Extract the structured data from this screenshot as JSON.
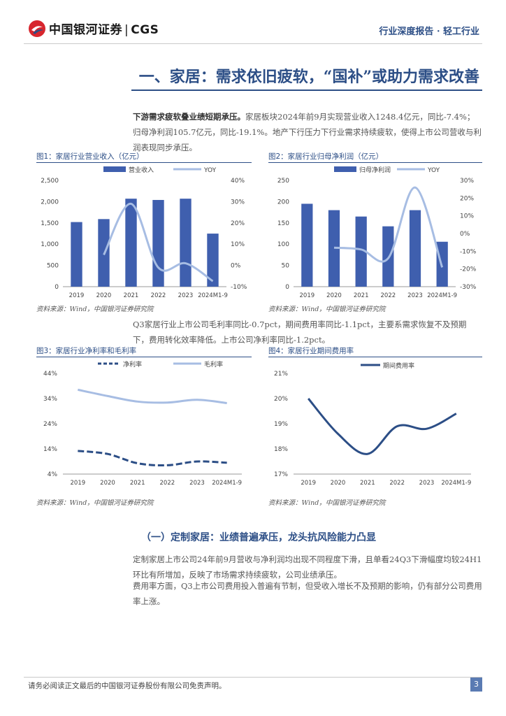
{
  "header": {
    "logo_text": "中国银河证券",
    "logo_sep": "|",
    "logo_abbr": "CGS",
    "report_type": "行业深度报告 · 轻工行业"
  },
  "section_title": "一、家居：需求依旧疲软，“国补”或助力需求改善",
  "para1": {
    "bold": "下游需求疲软叠业绩短期承压。",
    "text": "家居板块2024年前9月实现营业收入1248.4亿元，同比-7.4%；归母净利润105.7亿元，同比-19.1%。地产下行压力下行业需求持续疲软，使得上市公司营收与利润表现同步承压。"
  },
  "para2": "Q3家居行业上市公司毛利率同比-0.7pct，期间费用率同比-1.1pct，主要系需求恢复不及预期下，费用转化效率降低。上市公司净利率同比-1.2pct。",
  "subsection_title": "（一）定制家居：业绩普遍承压，龙头抗风险能力凸显",
  "para3": "定制家居上市公司24年前9月营收与净利润均出现不同程度下滑，且单看24Q3下滑幅度均较24H1环比有所增加，反映了市场需求持续疲软，公司业绩承压。",
  "para4": "费用率方面，Q3上市公司费用投入普遍有节制，但受收入增长不及预期的影响，仍有部分公司费用率上涨。",
  "figures": {
    "fig1_caption": "图1：家居行业营业收入（亿元）",
    "fig2_caption": "图2：家居行业归母净利润（亿元）",
    "fig3_caption": "图3：家居行业净利率和毛利率",
    "fig4_caption": "图4：家居行业期间费用率",
    "source": "资料来源：Wind，中国银河证券研究院"
  },
  "footer": {
    "disclaimer": "请务必阅读正文最后的中国银河证券股份有限公司免责声明。",
    "page": "3"
  },
  "colors": {
    "brand_blue": "#2c4e86",
    "bar_blue": "#3f5fae",
    "line_light": "#a7bde3",
    "logo_red": "#d7262e"
  },
  "chart_data": [
    {
      "type": "bar",
      "title": "家居行业营业收入（亿元）",
      "categories": [
        "2019",
        "2020",
        "2021",
        "2022",
        "2023",
        "2024M1-9"
      ],
      "series": [
        {
          "name": "营业收入",
          "type": "bar",
          "axis": "left",
          "values": [
            1520,
            1590,
            2070,
            2040,
            2070,
            1248.4
          ]
        },
        {
          "name": "YOY",
          "type": "line",
          "axis": "right",
          "values": [
            null,
            5,
            29,
            -1,
            1,
            -7.4
          ]
        }
      ],
      "ylim_left": [
        0,
        2500
      ],
      "yticks_left": [
        "0",
        "500",
        "1,000",
        "1,500",
        "2,000",
        "2,500"
      ],
      "ylim_right": [
        -10,
        40
      ],
      "yticks_right": [
        "-10%",
        "0%",
        "10%",
        "20%",
        "30%",
        "40%"
      ]
    },
    {
      "type": "bar",
      "title": "家居行业归母净利润（亿元）",
      "categories": [
        "2019",
        "2020",
        "2021",
        "2022",
        "2023",
        "2024M1-9"
      ],
      "series": [
        {
          "name": "归母净利润",
          "type": "bar",
          "axis": "left",
          "values": [
            195,
            180,
            165,
            142,
            180,
            105.7
          ]
        },
        {
          "name": "YOY",
          "type": "line",
          "axis": "right",
          "values": [
            null,
            -8,
            -9,
            -14,
            26,
            -19.1
          ]
        }
      ],
      "ylim_left": [
        0,
        250
      ],
      "yticks_left": [
        "0",
        "50",
        "100",
        "150",
        "200",
        "250"
      ],
      "ylim_right": [
        -30,
        30
      ],
      "yticks_right": [
        "-30%",
        "-20%",
        "-10%",
        "0%",
        "10%",
        "20%",
        "30%"
      ]
    },
    {
      "type": "line",
      "title": "家居行业净利率和毛利率",
      "categories": [
        "2019",
        "2020",
        "2021",
        "2022",
        "2023",
        "2024M1-9"
      ],
      "series": [
        {
          "name": "净利率",
          "style": "dashed",
          "values": [
            13.2,
            12,
            8.3,
            7.5,
            9,
            8.5
          ]
        },
        {
          "name": "毛利率",
          "style": "solid",
          "values": [
            37.5,
            35,
            32.8,
            32.4,
            33.5,
            32.2
          ]
        }
      ],
      "ylim": [
        4,
        44
      ],
      "yticks": [
        "4%",
        "14%",
        "24%",
        "34%",
        "44%"
      ]
    },
    {
      "type": "line",
      "title": "家居行业期间费用率",
      "categories": [
        "2019",
        "2020",
        "2021",
        "2022",
        "2023",
        "2024M1-9"
      ],
      "series": [
        {
          "name": "期间费用率",
          "style": "solid",
          "values": [
            20,
            18.6,
            17.8,
            18.9,
            18.8,
            19.4
          ]
        }
      ],
      "ylim": [
        17,
        21
      ],
      "yticks": [
        "17%",
        "18%",
        "19%",
        "20%",
        "21%"
      ]
    }
  ]
}
